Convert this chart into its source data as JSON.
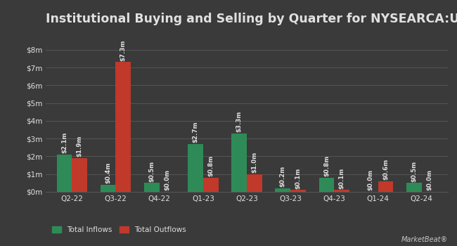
{
  "title": "Institutional Buying and Selling by Quarter for NYSEARCA:USL",
  "quarters": [
    "Q2-22",
    "Q3-22",
    "Q4-22",
    "Q1-23",
    "Q2-23",
    "Q3-23",
    "Q4-23",
    "Q1-24",
    "Q2-24"
  ],
  "inflows": [
    2.1,
    0.4,
    0.5,
    2.7,
    3.3,
    0.2,
    0.8,
    0.0,
    0.5
  ],
  "outflows": [
    1.9,
    7.3,
    0.0,
    0.8,
    1.0,
    0.1,
    0.1,
    0.6,
    0.0
  ],
  "inflow_labels": [
    "$2.1m",
    "$0.4m",
    "$0.5m",
    "$2.7m",
    "$3.3m",
    "$0.2m",
    "$0.8m",
    "$0.0m",
    "$0.5m"
  ],
  "outflow_labels": [
    "$1.9m",
    "$7.3m",
    "$0.0m",
    "$0.8m",
    "$1.0m",
    "$0.1m",
    "$0.1m",
    "$0.6m",
    "$0.0m"
  ],
  "inflow_color": "#2e8b57",
  "outflow_color": "#c0392b",
  "bg_color": "#3a3a3a",
  "plot_bg_color": "#3a3a3a",
  "text_color": "#e0e0e0",
  "grid_color": "#555555",
  "bar_width": 0.35,
  "ylim": [
    0,
    9
  ],
  "yticks": [
    0,
    1,
    2,
    3,
    4,
    5,
    6,
    7,
    8
  ],
  "ytick_labels": [
    "$0m",
    "$1m",
    "$2m",
    "$3m",
    "$4m",
    "$5m",
    "$6m",
    "$7m",
    "$8m"
  ],
  "legend_inflow": "Total Inflows",
  "legend_outflow": "Total Outflows",
  "title_fontsize": 12.5,
  "label_fontsize": 6.2,
  "tick_fontsize": 7.5,
  "legend_fontsize": 7.5
}
